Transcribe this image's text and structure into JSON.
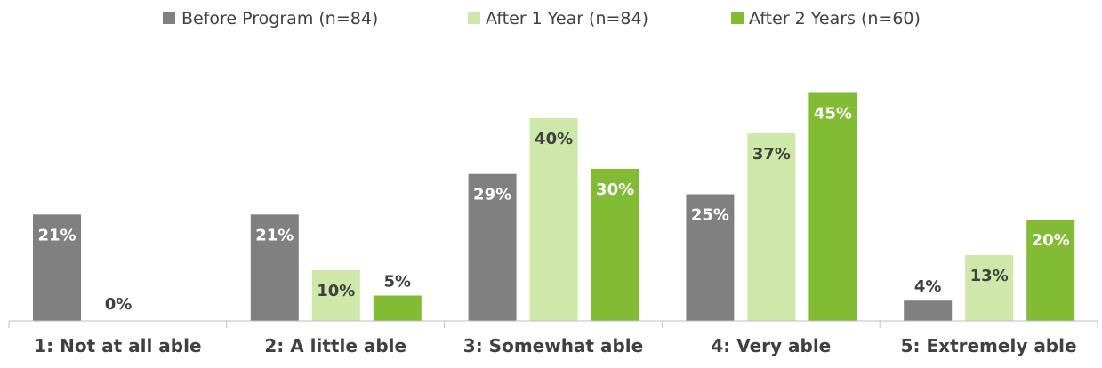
{
  "chart_data": {
    "type": "bar",
    "title": "",
    "xlabel": "",
    "ylabel": "",
    "ylim": [
      0,
      45
    ],
    "grid": false,
    "legend_position": "top",
    "categories": [
      "1: Not at all able",
      "2: A little able",
      "3: Somewhat able",
      "4: Very able",
      "5: Extremely able"
    ],
    "series": [
      {
        "name": "Before Program (n=84)",
        "color": "#808080",
        "values": [
          21,
          21,
          29,
          25,
          4
        ],
        "labels": [
          "21%",
          "21%",
          "29%",
          "25%",
          "4%"
        ]
      },
      {
        "name": "After 1 Year (n=84)",
        "color": "#cde8a8",
        "values": [
          0,
          10,
          40,
          37,
          13
        ],
        "labels": [
          "0%",
          "10%",
          "40%",
          "37%",
          "13%"
        ]
      },
      {
        "name": "After 2 Years (n=60)",
        "color": "#82bc34",
        "values": [
          null,
          5,
          30,
          45,
          20
        ],
        "labels": [
          "",
          "5%",
          "30%",
          "45%",
          "20%"
        ]
      }
    ]
  },
  "colors": {
    "label_dark": "#404040",
    "label_light": "#ffffff",
    "axis": "#bfbfbf"
  }
}
